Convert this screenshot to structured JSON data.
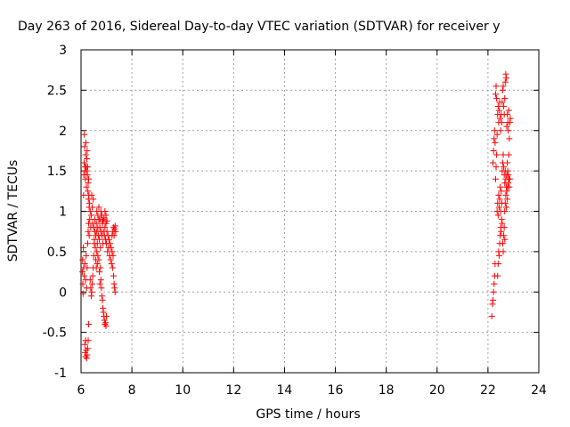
{
  "chart_data": {
    "type": "scatter",
    "title": "Day 263 of 2016, Sidereal Day-to-day VTEC variation (SDTVAR) for receiver y",
    "xlabel": "GPS time / hours",
    "ylabel": "SDTVAR / TECUs",
    "xlim": [
      6,
      24
    ],
    "ylim": [
      -1,
      3
    ],
    "xticks": [
      6,
      8,
      10,
      12,
      14,
      16,
      18,
      20,
      22,
      24
    ],
    "yticks": [
      -1,
      -0.5,
      0,
      0.5,
      1,
      1.5,
      2,
      2.5,
      3
    ],
    "ytick_labels": [
      "-1",
      "-0.5",
      "0",
      "0.5",
      "1",
      "1.5",
      "2",
      "2.5",
      "3"
    ],
    "grid": true,
    "marker": "plus",
    "series": [
      {
        "color": "#ff0000",
        "points": [
          [
            6.05,
            0.25
          ],
          [
            6.06,
            0.4
          ],
          [
            6.07,
            0.1
          ],
          [
            6.08,
            -0.02
          ],
          [
            6.09,
            0.55
          ],
          [
            6.1,
            0.3
          ],
          [
            6.1,
            1.2
          ],
          [
            6.11,
            1.45
          ],
          [
            6.12,
            1.6
          ],
          [
            6.13,
            1.95
          ],
          [
            6.14,
            1.8
          ],
          [
            6.15,
            1.5
          ],
          [
            6.16,
            1.55
          ],
          [
            6.17,
            1.4
          ],
          [
            6.18,
            1.7
          ],
          [
            6.19,
            1.85
          ],
          [
            6.2,
            1.55
          ],
          [
            6.21,
            1.3
          ],
          [
            6.22,
            1.5
          ],
          [
            6.23,
            1.65
          ],
          [
            6.24,
            1.75
          ],
          [
            6.25,
            1.45
          ],
          [
            6.26,
            1.55
          ],
          [
            6.27,
            1.25
          ],
          [
            6.28,
            1.35
          ],
          [
            6.29,
            1.15
          ],
          [
            6.3,
            1.4
          ],
          [
            6.31,
            1.2
          ],
          [
            6.32,
            1.05
          ],
          [
            6.33,
            1.1
          ],
          [
            6.15,
            -0.65
          ],
          [
            6.16,
            -0.75
          ],
          [
            6.18,
            -0.8
          ],
          [
            6.2,
            -0.72
          ],
          [
            6.22,
            -0.82
          ],
          [
            6.24,
            -0.78
          ],
          [
            6.26,
            -0.7
          ],
          [
            6.28,
            -0.6
          ],
          [
            6.3,
            -0.4
          ],
          [
            6.18,
            -0.6
          ],
          [
            6.12,
            0.2
          ],
          [
            6.15,
            0.35
          ],
          [
            6.18,
            0.15
          ],
          [
            6.2,
            0.45
          ],
          [
            6.22,
            0.05
          ],
          [
            6.24,
            0.3
          ],
          [
            6.26,
            0.6
          ],
          [
            6.28,
            0.75
          ],
          [
            6.3,
            0.85
          ],
          [
            6.32,
            0.7
          ],
          [
            6.34,
            0.9
          ],
          [
            6.36,
            1.0
          ],
          [
            6.38,
            0.8
          ],
          [
            6.4,
            0.95
          ],
          [
            6.42,
            1.2
          ],
          [
            6.44,
            1.05
          ],
          [
            6.46,
            0.85
          ],
          [
            6.48,
            1.15
          ],
          [
            6.36,
            0.15
          ],
          [
            6.38,
            0.05
          ],
          [
            6.4,
            -0.05
          ],
          [
            6.42,
            0.0
          ],
          [
            6.44,
            0.1
          ],
          [
            6.46,
            0.2
          ],
          [
            6.48,
            0.3
          ],
          [
            6.5,
            0.45
          ],
          [
            6.52,
            0.6
          ],
          [
            6.54,
            0.75
          ],
          [
            6.5,
            0.8
          ],
          [
            6.52,
            0.65
          ],
          [
            6.54,
            0.9
          ],
          [
            6.56,
            0.55
          ],
          [
            6.58,
            0.7
          ],
          [
            6.6,
            0.85
          ],
          [
            6.62,
            0.75
          ],
          [
            6.64,
            0.6
          ],
          [
            6.66,
            0.8
          ],
          [
            6.68,
            0.7
          ],
          [
            6.7,
            0.9
          ],
          [
            6.72,
            0.65
          ],
          [
            6.74,
            0.8
          ],
          [
            6.76,
            0.55
          ],
          [
            6.78,
            0.75
          ],
          [
            6.8,
            0.95
          ],
          [
            6.82,
            0.7
          ],
          [
            6.84,
            0.85
          ],
          [
            6.86,
            0.6
          ],
          [
            6.88,
            0.75
          ],
          [
            6.9,
            0.9
          ],
          [
            6.92,
            0.7
          ],
          [
            6.94,
            0.8
          ],
          [
            6.96,
            0.65
          ],
          [
            6.98,
            0.85
          ],
          [
            7.0,
            0.6
          ],
          [
            7.02,
            0.75
          ],
          [
            7.04,
            0.5
          ],
          [
            7.06,
            0.7
          ],
          [
            7.08,
            0.55
          ],
          [
            7.1,
            0.65
          ],
          [
            7.12,
            0.45
          ],
          [
            7.14,
            0.6
          ],
          [
            7.16,
            0.4
          ],
          [
            7.18,
            0.55
          ],
          [
            7.2,
            0.35
          ],
          [
            7.22,
            0.5
          ],
          [
            7.24,
            0.3
          ],
          [
            7.26,
            0.45
          ],
          [
            7.28,
            0.2
          ],
          [
            7.3,
            0.1
          ],
          [
            7.32,
            0.05
          ],
          [
            7.34,
            0.0
          ],
          [
            7.22,
            0.7
          ],
          [
            7.25,
            0.75
          ],
          [
            7.28,
            0.8
          ],
          [
            7.3,
            0.7
          ],
          [
            7.32,
            0.78
          ],
          [
            7.34,
            0.82
          ],
          [
            7.36,
            0.75
          ],
          [
            6.7,
            0.4
          ],
          [
            6.72,
            0.25
          ],
          [
            6.74,
            0.1
          ],
          [
            6.76,
            0.3
          ],
          [
            6.78,
            0.15
          ],
          [
            6.8,
            0.05
          ],
          [
            6.82,
            -0.05
          ],
          [
            6.84,
            -0.1
          ],
          [
            6.86,
            -0.2
          ],
          [
            6.88,
            -0.25
          ],
          [
            6.9,
            -0.3
          ],
          [
            6.92,
            -0.35
          ],
          [
            6.94,
            -0.4
          ],
          [
            6.96,
            -0.38
          ],
          [
            6.98,
            -0.42
          ],
          [
            7.0,
            -0.3
          ],
          [
            6.62,
            1.0
          ],
          [
            6.66,
            0.95
          ],
          [
            6.7,
            1.05
          ],
          [
            6.74,
            0.9
          ],
          [
            6.78,
            1.0
          ],
          [
            6.82,
            0.95
          ],
          [
            6.86,
            0.88
          ],
          [
            6.9,
            0.92
          ],
          [
            6.94,
            1.0
          ],
          [
            6.98,
            0.95
          ],
          [
            7.02,
            0.88
          ],
          [
            6.58,
            0.4
          ],
          [
            6.6,
            0.3
          ],
          [
            6.62,
            0.5
          ],
          [
            6.64,
            0.35
          ],
          [
            6.66,
            0.45
          ],
          [
            22.15,
            -0.3
          ],
          [
            22.18,
            -0.15
          ],
          [
            22.2,
            -0.1
          ],
          [
            22.22,
            0.0
          ],
          [
            22.24,
            0.1
          ],
          [
            22.26,
            0.2
          ],
          [
            22.28,
            0.35
          ],
          [
            22.2,
            1.6
          ],
          [
            22.22,
            1.75
          ],
          [
            22.24,
            1.9
          ],
          [
            22.26,
            2.0
          ],
          [
            22.28,
            1.85
          ],
          [
            22.3,
            2.45
          ],
          [
            22.32,
            2.55
          ],
          [
            22.34,
            2.4
          ],
          [
            22.3,
            1.4
          ],
          [
            22.32,
            1.55
          ],
          [
            22.34,
            1.7
          ],
          [
            22.36,
            1.95
          ],
          [
            22.38,
            2.2
          ],
          [
            22.4,
            2.3
          ],
          [
            22.42,
            2.1
          ],
          [
            22.44,
            2.25
          ],
          [
            22.46,
            2.35
          ],
          [
            22.48,
            2.15
          ],
          [
            22.36,
            1.0
          ],
          [
            22.38,
            1.1
          ],
          [
            22.4,
            0.95
          ],
          [
            22.42,
            1.2
          ],
          [
            22.44,
            1.05
          ],
          [
            22.46,
            1.15
          ],
          [
            22.48,
            1.3
          ],
          [
            22.5,
            1.0
          ],
          [
            22.52,
            1.25
          ],
          [
            22.54,
            1.1
          ],
          [
            22.38,
            0.2
          ],
          [
            22.4,
            0.35
          ],
          [
            22.42,
            0.5
          ],
          [
            22.44,
            0.45
          ],
          [
            22.46,
            0.6
          ],
          [
            22.48,
            0.7
          ],
          [
            22.5,
            0.8
          ],
          [
            22.52,
            0.75
          ],
          [
            22.54,
            0.9
          ],
          [
            22.56,
            0.85
          ],
          [
            22.5,
            2.0
          ],
          [
            22.52,
            2.2
          ],
          [
            22.54,
            2.1
          ],
          [
            22.56,
            2.35
          ],
          [
            22.58,
            2.5
          ],
          [
            22.6,
            2.55
          ],
          [
            22.62,
            2.3
          ],
          [
            22.64,
            2.2
          ],
          [
            22.66,
            2.4
          ],
          [
            22.68,
            2.6
          ],
          [
            22.7,
            2.7
          ],
          [
            22.72,
            2.65
          ],
          [
            22.56,
            1.5
          ],
          [
            22.58,
            1.6
          ],
          [
            22.6,
            1.7
          ],
          [
            22.62,
            1.55
          ],
          [
            22.64,
            1.45
          ],
          [
            22.66,
            1.35
          ],
          [
            22.68,
            1.5
          ],
          [
            22.7,
            1.4
          ],
          [
            22.72,
            1.3
          ],
          [
            22.74,
            1.45
          ],
          [
            22.76,
            1.6
          ],
          [
            22.78,
            1.5
          ],
          [
            22.8,
            1.35
          ],
          [
            22.82,
            1.4
          ],
          [
            22.84,
            1.3
          ],
          [
            22.86,
            1.4
          ],
          [
            22.66,
            1.0
          ],
          [
            22.68,
            1.1
          ],
          [
            22.7,
            1.2
          ],
          [
            22.72,
            1.05
          ],
          [
            22.74,
            1.25
          ],
          [
            22.76,
            1.15
          ],
          [
            22.78,
            1.3
          ],
          [
            22.8,
            1.45
          ],
          [
            22.82,
            1.7
          ],
          [
            22.84,
            1.9
          ],
          [
            22.86,
            2.1
          ],
          [
            22.88,
            2.15
          ],
          [
            22.74,
            2.05
          ],
          [
            22.76,
            2.2
          ],
          [
            22.78,
            2.1
          ],
          [
            22.8,
            2.0
          ],
          [
            22.82,
            2.25
          ],
          [
            22.58,
            0.6
          ],
          [
            22.6,
            0.5
          ],
          [
            22.62,
            0.7
          ],
          [
            22.64,
            0.8
          ],
          [
            22.66,
            0.65
          ]
        ]
      }
    ]
  }
}
